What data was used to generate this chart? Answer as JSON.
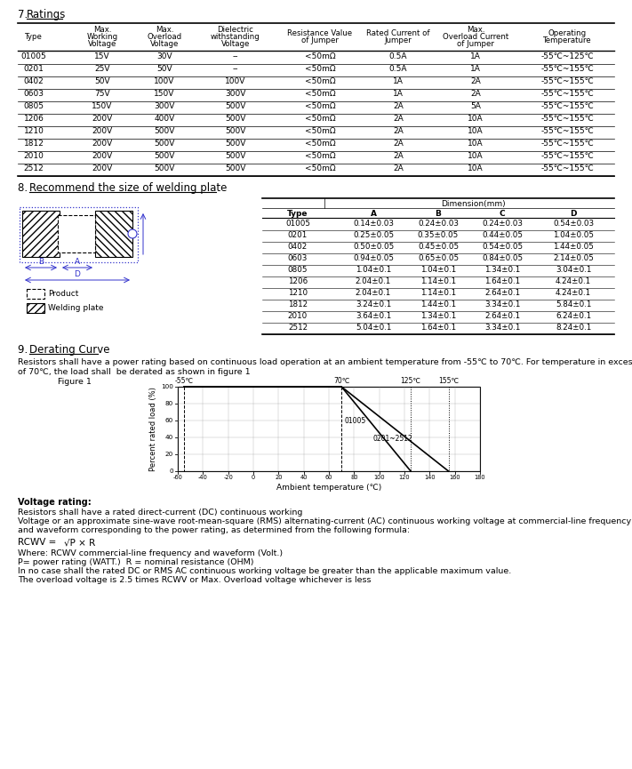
{
  "title7": "7. Ratings",
  "title8": "8.  Recommend the size of welding plate",
  "title9": "9. Derating Curve",
  "ratings_data": [
    [
      "01005",
      "15V",
      "30V",
      "--",
      "<50mΩ",
      "0.5A",
      "1A",
      "-55℃~125℃"
    ],
    [
      "0201",
      "25V",
      "50V",
      "--",
      "<50mΩ",
      "0.5A",
      "1A",
      "-55℃~155℃"
    ],
    [
      "0402",
      "50V",
      "100V",
      "100V",
      "<50mΩ",
      "1A",
      "2A",
      "-55℃~155℃"
    ],
    [
      "0603",
      "75V",
      "150V",
      "300V",
      "<50mΩ",
      "1A",
      "2A",
      "-55℃~155℃"
    ],
    [
      "0805",
      "150V",
      "300V",
      "500V",
      "<50mΩ",
      "2A",
      "5A",
      "-55℃~155℃"
    ],
    [
      "1206",
      "200V",
      "400V",
      "500V",
      "<50mΩ",
      "2A",
      "10A",
      "-55℃~155℃"
    ],
    [
      "1210",
      "200V",
      "500V",
      "500V",
      "<50mΩ",
      "2A",
      "10A",
      "-55℃~155℃"
    ],
    [
      "1812",
      "200V",
      "500V",
      "500V",
      "<50mΩ",
      "2A",
      "10A",
      "-55℃~155℃"
    ],
    [
      "2010",
      "200V",
      "500V",
      "500V",
      "<50mΩ",
      "2A",
      "10A",
      "-55℃~155℃"
    ],
    [
      "2512",
      "200V",
      "500V",
      "500V",
      "<50mΩ",
      "2A",
      "10A",
      "-55℃~155℃"
    ]
  ],
  "welding_data": [
    [
      "01005",
      "0.14±0.03",
      "0.24±0.03",
      "0.24±0.03",
      "0.54±0.03"
    ],
    [
      "0201",
      "0.25±0.05",
      "0.35±0.05",
      "0.44±0.05",
      "1.04±0.05"
    ],
    [
      "0402",
      "0.50±0.05",
      "0.45±0.05",
      "0.54±0.05",
      "1.44±0.05"
    ],
    [
      "0603",
      "0.94±0.05",
      "0.65±0.05",
      "0.84±0.05",
      "2.14±0.05"
    ],
    [
      "0805",
      "1.04±0.1",
      "1.04±0.1",
      "1.34±0.1",
      "3.04±0.1"
    ],
    [
      "1206",
      "2.04±0.1",
      "1.14±0.1",
      "1.64±0.1",
      "4.24±0.1"
    ],
    [
      "1210",
      "2.04±0.1",
      "1.14±0.1",
      "2.64±0.1",
      "4.24±0.1"
    ],
    [
      "1812",
      "3.24±0.1",
      "1.44±0.1",
      "3.34±0.1",
      "5.84±0.1"
    ],
    [
      "2010",
      "3.64±0.1",
      "1.34±0.1",
      "2.64±0.1",
      "6.24±0.1"
    ],
    [
      "2512",
      "5.04±0.1",
      "1.64±0.1",
      "3.34±0.1",
      "8.24±0.1"
    ]
  ],
  "derating_text1": "Resistors shall have a power rating based on continuous load operation at an ambient temperature from -55℃ to 70℃. For temperature in excess",
  "derating_text2": "of 70℃, the load shall  be derated as shown in figure 1",
  "derating_figure": "Figure 1",
  "voltage_rating_title": "Voltage rating:",
  "voltage_text1": "Resistors shall have a rated direct-current (DC) continuous working",
  "voltage_text2": "Voltage or an approximate sine-wave root-mean-square (RMS) alternating-current (AC) continuous working voltage at commercial-line frequency",
  "voltage_text3": "and waveform corresponding to the power rating, as determined from the following formula:",
  "rcwv_where": "Where: RCWV commercial-line frequency and waveform (Volt.)",
  "rcwv_p": "P= power rating (WATT.)  R = nominal resistance (OHM)",
  "rcwv_note1": "In no case shall the rated DC or RMS AC continuous working voltage be greater than the applicable maximum value.",
  "rcwv_note2": "The overload voltage is 2.5 times RCWV or Max. Overload voltage whichever is less"
}
